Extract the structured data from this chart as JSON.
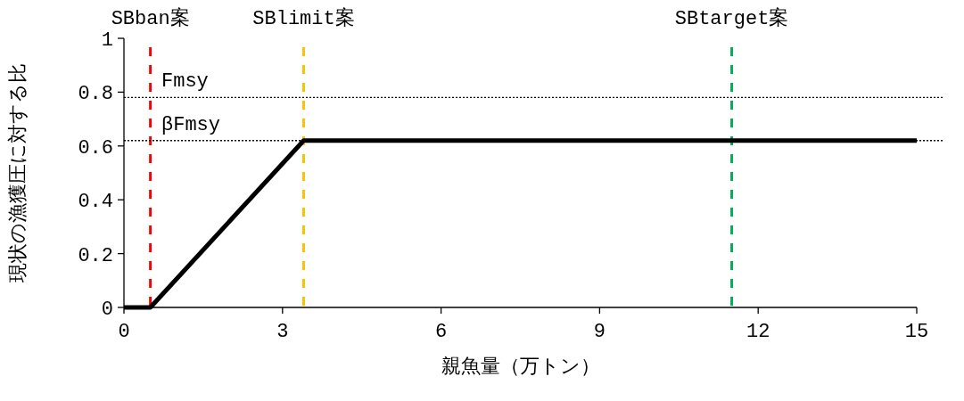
{
  "chart_data": {
    "type": "line",
    "xlabel": "親魚量（万トン）",
    "ylabel": "現状の漁獲圧に対する比",
    "xlim": [
      0,
      15
    ],
    "ylim": [
      0,
      1
    ],
    "xticks": [
      0,
      3,
      6,
      9,
      12,
      15
    ],
    "yticks": [
      0,
      0.2,
      0.4,
      0.6,
      0.8,
      1
    ],
    "series": [
      {
        "color": "#000000",
        "x": [
          0,
          0.5,
          3.4,
          15
        ],
        "values": [
          0,
          0,
          0.62,
          0.62
        ],
        "line_style": "solid"
      }
    ],
    "ref_lines": [
      {
        "axis": "x",
        "value": 0.5,
        "label": "SBban案",
        "color": "#ff0000",
        "line_style": "dashed"
      },
      {
        "axis": "x",
        "value": 3.4,
        "label": "SBlimit案",
        "color": "#ffc000",
        "line_style": "dashed"
      },
      {
        "axis": "x",
        "value": 11.5,
        "label": "SBtarget案",
        "color": "#00b050",
        "line_style": "dashed"
      },
      {
        "axis": "y",
        "value": 0.78,
        "label": "Fmsy",
        "color": "#000000",
        "line_style": "dotted"
      },
      {
        "axis": "y",
        "value": 0.62,
        "label": "βFmsy",
        "color": "#000000",
        "line_style": "dotted"
      }
    ]
  }
}
